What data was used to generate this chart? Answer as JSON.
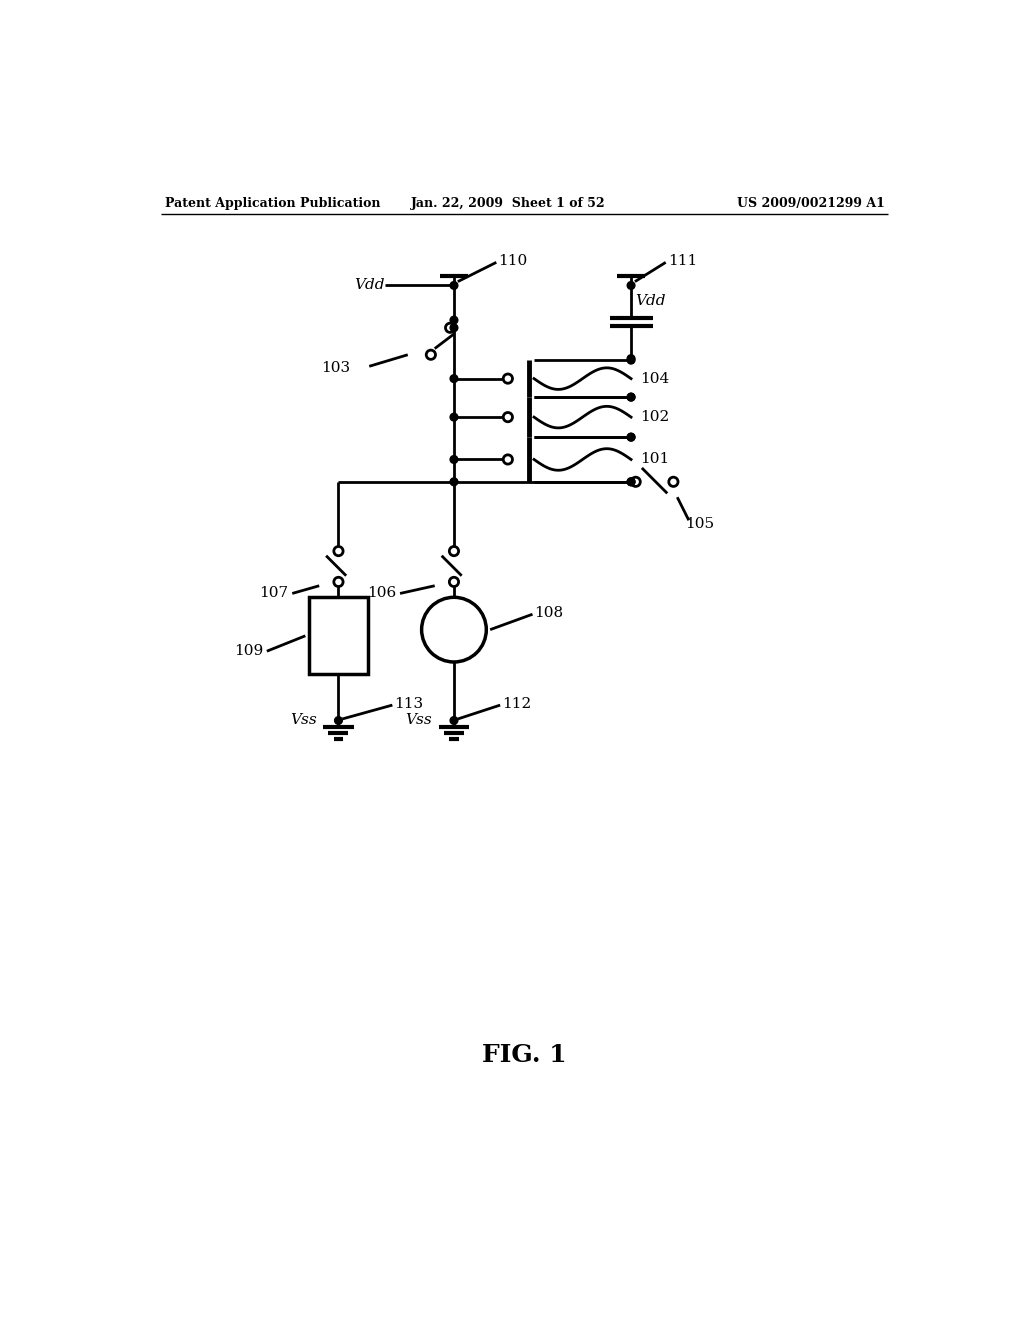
{
  "title": "FIG. 1",
  "header_left": "Patent Application Publication",
  "header_center": "Jan. 22, 2009  Sheet 1 of 52",
  "header_right": "US 2009/0021299 A1",
  "bg_color": "#ffffff",
  "line_color": "#000000",
  "lw": 2.0,
  "fig_width": 10.24,
  "fig_height": 13.2,
  "dpi": 100
}
